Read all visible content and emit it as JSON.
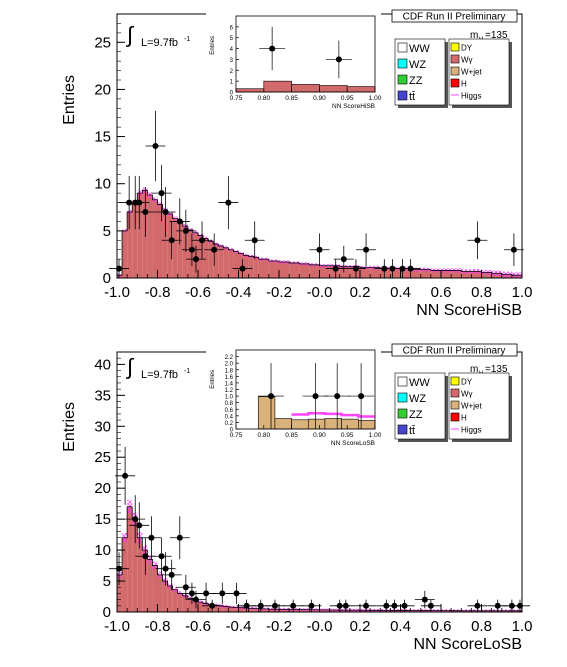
{
  "colors": {
    "ww": "#ffffff",
    "wz": "#00ffff",
    "zz": "#33cc33",
    "tt": "#4444cc",
    "dy": "#ffff00",
    "wg": "#d2696b",
    "wjet": "#d8b27a",
    "h": "#ff0000",
    "higgs": "#ff44ff",
    "hatch": "#ff33ff",
    "bkg_fill": "#d2696b",
    "data_marker": "#000000",
    "legend_shadow": "#555555"
  },
  "legend": {
    "run_label": "CDF Run II Preliminary",
    "mass_label": "m",
    "mass_sub": "H",
    "mass_value": "=135",
    "left": [
      {
        "key": "ww",
        "label": "WW"
      },
      {
        "key": "wz",
        "label": "WZ"
      },
      {
        "key": "zz",
        "label": "ZZ"
      },
      {
        "key": "tt",
        "label": "tt̄"
      }
    ],
    "right": [
      {
        "key": "dy",
        "label": "DY"
      },
      {
        "key": "wg",
        "label": "Wγ"
      },
      {
        "key": "wjet",
        "label": "W+jet"
      },
      {
        "key": "h",
        "label": "H"
      },
      {
        "key": "higgs",
        "label": "Higgs",
        "line": true
      }
    ]
  },
  "lumi": {
    "prefix": "L=9.7fb",
    "sup": "-1"
  },
  "chart_data": [
    {
      "type": "bar",
      "name": "top",
      "xlabel": "NN ScoreHiSB",
      "ylabel": "Entries",
      "xlim": [
        -1.0,
        1.0
      ],
      "ylim": [
        0,
        28
      ],
      "xticks": [
        "-1.0",
        "-0.8",
        "-0.6",
        "-0.4",
        "-0.2",
        "-0.0",
        "0.2",
        "0.4",
        "0.6",
        "0.8",
        "1.0"
      ],
      "yticks": [
        "0",
        "5",
        "10",
        "15",
        "20",
        "25"
      ],
      "bin_edges": [
        -1.0,
        -0.975,
        -0.95,
        -0.925,
        -0.9,
        -0.875,
        -0.85,
        -0.825,
        -0.8,
        -0.775,
        -0.75,
        -0.725,
        -0.7,
        -0.675,
        -0.65,
        -0.625,
        -0.6,
        -0.575,
        -0.55,
        -0.525,
        -0.5,
        -0.475,
        -0.45,
        -0.425,
        -0.4,
        -0.375,
        -0.35,
        -0.325,
        -0.3,
        -0.25,
        -0.2,
        -0.15,
        -0.1,
        -0.05,
        0.0,
        0.05,
        0.1,
        0.15,
        0.2,
        0.25,
        0.3,
        0.35,
        0.4,
        0.45,
        0.5,
        0.55,
        0.6,
        0.65,
        0.7,
        0.75,
        0.8,
        0.85,
        0.9,
        0.95,
        1.0
      ],
      "background": [
        0.3,
        5.0,
        7.0,
        8.0,
        9.0,
        9.3,
        8.8,
        8.3,
        7.8,
        7.2,
        6.8,
        6.3,
        5.9,
        5.5,
        5.1,
        4.8,
        4.5,
        4.2,
        3.9,
        3.6,
        3.4,
        3.2,
        3.0,
        2.8,
        2.6,
        2.4,
        2.3,
        2.2,
        2.0,
        1.8,
        1.7,
        1.6,
        1.5,
        1.4,
        1.3,
        1.3,
        1.2,
        1.2,
        1.1,
        1.1,
        1.0,
        1.0,
        1.0,
        0.9,
        0.9,
        0.8,
        0.8,
        0.8,
        0.7,
        0.7,
        0.6,
        0.5,
        0.4,
        0.3
      ],
      "higgs": [
        0.02,
        0.03,
        0.04,
        0.05,
        0.06,
        0.06,
        0.06,
        0.05,
        0.05,
        0.05,
        0.04,
        0.04,
        0.04,
        0.03,
        0.03,
        0.03,
        0.03,
        0.03,
        0.02,
        0.02,
        0.02,
        0.02,
        0.02,
        0.02,
        0.02,
        0.02,
        0.02,
        0.02,
        0.02,
        0.02,
        0.02,
        0.02,
        0.02,
        0.02,
        0.02,
        0.02,
        0.02,
        0.02,
        0.02,
        0.03,
        0.03,
        0.03,
        0.03,
        0.03,
        0.03,
        0.03,
        0.04,
        0.04,
        0.04,
        0.05,
        0.05,
        0.06,
        0.06,
        0.06
      ],
      "data": [
        {
          "x": -0.99,
          "y": 1
        },
        {
          "x": -0.94,
          "y": 8
        },
        {
          "x": -0.91,
          "y": 8
        },
        {
          "x": -0.89,
          "y": 8
        },
        {
          "x": -0.86,
          "y": 7
        },
        {
          "x": -0.81,
          "y": 14
        },
        {
          "x": -0.78,
          "y": 9
        },
        {
          "x": -0.76,
          "y": 7
        },
        {
          "x": -0.73,
          "y": 4
        },
        {
          "x": -0.69,
          "y": 6
        },
        {
          "x": -0.66,
          "y": 5
        },
        {
          "x": -0.63,
          "y": 3
        },
        {
          "x": -0.61,
          "y": 2
        },
        {
          "x": -0.58,
          "y": 4
        },
        {
          "x": -0.52,
          "y": 3
        },
        {
          "x": -0.45,
          "y": 8
        },
        {
          "x": -0.38,
          "y": 1
        },
        {
          "x": -0.32,
          "y": 4
        },
        {
          "x": 0.0,
          "y": 3
        },
        {
          "x": 0.12,
          "y": 2
        },
        {
          "x": 0.08,
          "y": 1
        },
        {
          "x": 0.18,
          "y": 1
        },
        {
          "x": 0.23,
          "y": 3
        },
        {
          "x": 0.32,
          "y": 1
        },
        {
          "x": 0.36,
          "y": 1
        },
        {
          "x": 0.41,
          "y": 1
        },
        {
          "x": 0.45,
          "y": 1
        },
        {
          "x": 0.78,
          "y": 4
        },
        {
          "x": 0.96,
          "y": 3
        }
      ],
      "inset": {
        "xlabel": "NN ScoreHiSB",
        "ylabel": "Entries",
        "xlim": [
          0.75,
          1.0
        ],
        "ylim": [
          0,
          7
        ],
        "xticks": [
          "0.75",
          "0.80",
          "0.85",
          "0.90",
          "0.95",
          "1.00"
        ],
        "yticks": [
          "0",
          "1",
          "2",
          "3",
          "4",
          "5",
          "6"
        ],
        "bin_edges": [
          0.75,
          0.8,
          0.85,
          0.9,
          0.95,
          1.0
        ],
        "background": [
          0.3,
          1.0,
          0.7,
          0.6,
          0.5
        ],
        "data": [
          {
            "x": 0.815,
            "y": 4
          },
          {
            "x": 0.935,
            "y": 3
          }
        ]
      }
    },
    {
      "type": "bar",
      "name": "bottom",
      "xlabel": "NN ScoreLoSB",
      "ylabel": "Entries",
      "xlim": [
        -1.0,
        1.0
      ],
      "ylim": [
        0,
        42
      ],
      "xticks": [
        "-1.0",
        "-0.8",
        "-0.6",
        "-0.4",
        "-0.2",
        "-0.0",
        "0.2",
        "0.4",
        "0.6",
        "0.8",
        "1.0"
      ],
      "yticks": [
        "0",
        "5",
        "10",
        "15",
        "20",
        "25",
        "30",
        "35",
        "40"
      ],
      "bin_edges": [
        -1.0,
        -0.975,
        -0.95,
        -0.925,
        -0.9,
        -0.875,
        -0.85,
        -0.825,
        -0.8,
        -0.775,
        -0.75,
        -0.725,
        -0.7,
        -0.675,
        -0.65,
        -0.625,
        -0.6,
        -0.575,
        -0.55,
        -0.525,
        -0.5,
        -0.475,
        -0.45,
        -0.425,
        -0.4,
        -0.375,
        -0.35,
        -0.325,
        -0.3,
        -0.25,
        -0.2,
        -0.15,
        -0.1,
        -0.05,
        0.0,
        0.05,
        0.1,
        0.15,
        0.2,
        0.25,
        0.3,
        0.35,
        0.4,
        0.45,
        0.5,
        0.55,
        0.6,
        0.65,
        0.7,
        0.75,
        0.8,
        0.85,
        0.9,
        0.95,
        1.0
      ],
      "background": [
        6.0,
        12.0,
        17.0,
        15.0,
        12.0,
        10.0,
        8.5,
        7.5,
        6.0,
        5.0,
        4.2,
        3.6,
        3.0,
        2.6,
        2.2,
        1.9,
        1.6,
        1.4,
        1.2,
        1.1,
        1.0,
        0.9,
        0.8,
        0.75,
        0.7,
        0.65,
        0.6,
        0.55,
        0.5,
        0.45,
        0.42,
        0.4,
        0.38,
        0.36,
        0.34,
        0.32,
        0.3,
        0.3,
        0.28,
        0.27,
        0.26,
        0.25,
        0.25,
        0.24,
        0.23,
        0.22,
        0.22,
        0.21,
        0.2,
        0.2,
        0.2,
        0.2,
        0.2,
        0.2
      ],
      "higgs": [
        0.1,
        0.2,
        0.3,
        0.3,
        0.25,
        0.2,
        0.18,
        0.15,
        0.12,
        0.1,
        0.08,
        0.07,
        0.06,
        0.05,
        0.05,
        0.04,
        0.04,
        0.03,
        0.03,
        0.03,
        0.03,
        0.03,
        0.02,
        0.02,
        0.02,
        0.02,
        0.02,
        0.02,
        0.02,
        0.02,
        0.02,
        0.02,
        0.02,
        0.02,
        0.02,
        0.02,
        0.02,
        0.02,
        0.02,
        0.02,
        0.02,
        0.02,
        0.02,
        0.02,
        0.02,
        0.02,
        0.02,
        0.02,
        0.02,
        0.02,
        0.02,
        0.02,
        0.02,
        0.02
      ],
      "data": [
        {
          "x": -0.99,
          "y": 7
        },
        {
          "x": -0.96,
          "y": 22
        },
        {
          "x": -0.91,
          "y": 15
        },
        {
          "x": -0.89,
          "y": 14
        },
        {
          "x": -0.86,
          "y": 9
        },
        {
          "x": -0.83,
          "y": 12
        },
        {
          "x": -0.78,
          "y": 9
        },
        {
          "x": -0.76,
          "y": 7
        },
        {
          "x": -0.73,
          "y": 6
        },
        {
          "x": -0.69,
          "y": 12
        },
        {
          "x": -0.66,
          "y": 4
        },
        {
          "x": -0.63,
          "y": 3
        },
        {
          "x": -0.61,
          "y": 2
        },
        {
          "x": -0.56,
          "y": 3
        },
        {
          "x": -0.53,
          "y": 1
        },
        {
          "x": -0.48,
          "y": 3
        },
        {
          "x": -0.41,
          "y": 3
        },
        {
          "x": -0.36,
          "y": 1
        },
        {
          "x": -0.29,
          "y": 1
        },
        {
          "x": -0.22,
          "y": 1
        },
        {
          "x": -0.13,
          "y": 1
        },
        {
          "x": -0.04,
          "y": 1
        },
        {
          "x": 0.1,
          "y": 1
        },
        {
          "x": 0.13,
          "y": 1
        },
        {
          "x": 0.23,
          "y": 1
        },
        {
          "x": 0.33,
          "y": 1
        },
        {
          "x": 0.37,
          "y": 1
        },
        {
          "x": 0.42,
          "y": 1
        },
        {
          "x": 0.52,
          "y": 2
        },
        {
          "x": 0.55,
          "y": 1
        },
        {
          "x": 0.78,
          "y": 1
        },
        {
          "x": 0.88,
          "y": 1
        },
        {
          "x": 0.95,
          "y": 1
        },
        {
          "x": 0.99,
          "y": 1
        }
      ],
      "inset": {
        "xlabel": "NN ScoreLoSB",
        "ylabel": "Entries",
        "xlim": [
          0.75,
          1.0
        ],
        "ylim": [
          0,
          2.4
        ],
        "xticks": [
          "0.75",
          "0.80",
          "0.85",
          "0.90",
          "0.95",
          "1.00"
        ],
        "yticks": [
          "0",
          "0.2",
          "0.4",
          "0.6",
          "0.8",
          "1.0",
          "1.2",
          "1.4",
          "1.6",
          "1.8",
          "2.0",
          "2.2"
        ],
        "bin_edges": [
          0.75,
          0.79,
          0.82,
          0.85,
          0.88,
          0.91,
          0.94,
          0.97,
          1.0
        ],
        "background": [
          0.0,
          0.98,
          0.32,
          0.28,
          0.3,
          0.32,
          0.3,
          0.26
        ],
        "higgs": [
          0.0,
          0.0,
          0.0,
          0.16,
          0.18,
          0.14,
          0.12,
          0.12
        ],
        "data": [
          {
            "x": 0.813,
            "y": 1
          },
          {
            "x": 0.893,
            "y": 1
          },
          {
            "x": 0.932,
            "y": 1
          },
          {
            "x": 0.975,
            "y": 1
          }
        ]
      }
    }
  ]
}
